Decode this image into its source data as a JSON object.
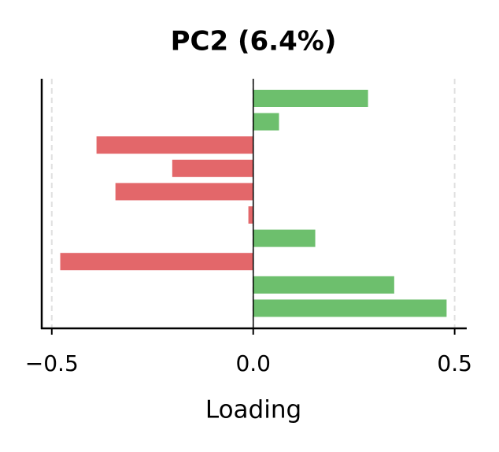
{
  "chart_data": {
    "type": "hbar",
    "title": "PC2 (6.4%)",
    "xlabel": "Loading",
    "categories": [
      null,
      null,
      null,
      null,
      null,
      null,
      null,
      null,
      null,
      null
    ],
    "values": [
      0.285,
      0.064,
      -0.389,
      -0.201,
      -0.342,
      -0.012,
      0.154,
      -0.479,
      0.35,
      0.48
    ],
    "color_positive": "#6dbf6d",
    "color_negative": "#e3676a",
    "xlim": [
      -0.525,
      0.53
    ],
    "xticks": [
      {
        "value": -0.5,
        "label": "−0.5"
      },
      {
        "value": 0,
        "label": "0.0"
      },
      {
        "value": 0.5,
        "label": "0.5"
      }
    ],
    "grid": true
  }
}
